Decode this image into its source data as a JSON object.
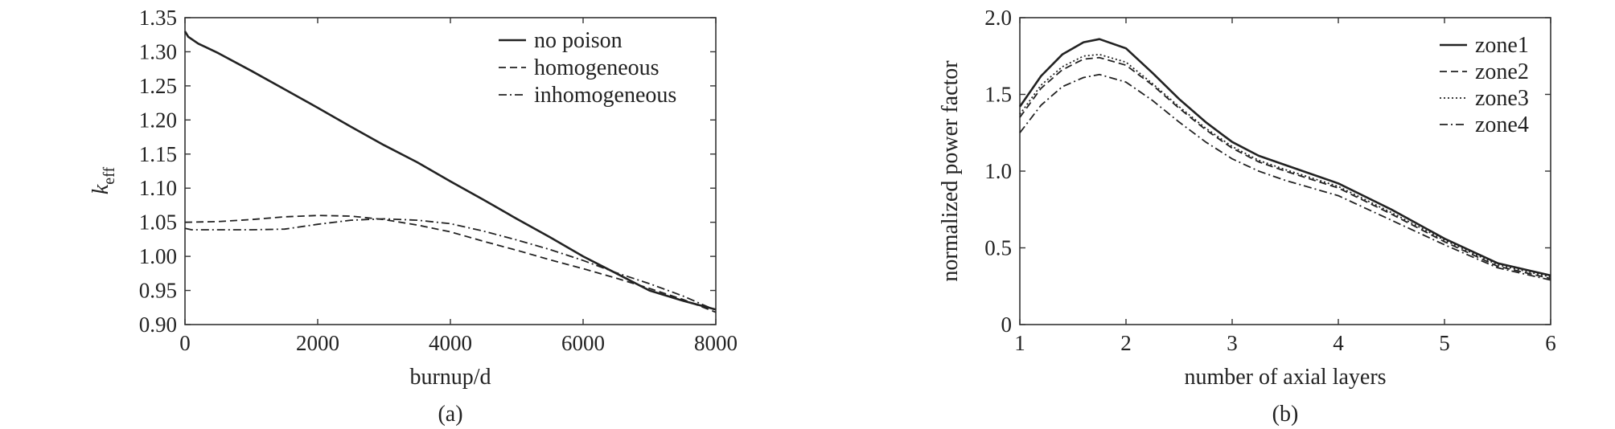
{
  "chart_data": [
    {
      "type": "line",
      "panel_label": "(a)",
      "xlabel": "burnup/d",
      "ylabel_main": "k",
      "ylabel_sub": "eff",
      "xlim": [
        0,
        8000
      ],
      "ylim": [
        0.9,
        1.35
      ],
      "xticks": [
        0,
        2000,
        4000,
        6000,
        8000
      ],
      "xtick_labels": [
        "0",
        "2000",
        "4000",
        "6000",
        "8000"
      ],
      "yticks": [
        0.9,
        0.95,
        1.0,
        1.05,
        1.1,
        1.15,
        1.2,
        1.25,
        1.3,
        1.35
      ],
      "ytick_labels": [
        "0.90",
        "0.95",
        "1.00",
        "1.05",
        "1.10",
        "1.15",
        "1.20",
        "1.25",
        "1.30",
        "1.35"
      ],
      "grid": false,
      "legend_position": "top-right",
      "series": [
        {
          "name": "no poison",
          "style": "solid",
          "x": [
            0,
            50,
            200,
            500,
            1000,
            1500,
            2000,
            2500,
            3000,
            3500,
            4000,
            4500,
            5000,
            5500,
            6000,
            6500,
            7000,
            7500,
            8000
          ],
          "y": [
            1.33,
            1.322,
            1.312,
            1.298,
            1.272,
            1.245,
            1.218,
            1.19,
            1.163,
            1.138,
            1.11,
            1.083,
            1.055,
            1.028,
            1.0,
            0.975,
            0.95,
            0.935,
            0.922
          ]
        },
        {
          "name": "homogeneous",
          "style": "dashed",
          "x": [
            0,
            500,
            1000,
            1500,
            2000,
            2500,
            3000,
            3500,
            4000,
            4500,
            5000,
            5500,
            6000,
            6500,
            7000,
            7500,
            8000
          ],
          "y": [
            1.05,
            1.051,
            1.054,
            1.058,
            1.06,
            1.059,
            1.054,
            1.046,
            1.036,
            1.022,
            1.009,
            0.995,
            0.982,
            0.968,
            0.953,
            0.937,
            0.918
          ]
        },
        {
          "name": "inhomogeneous",
          "style": "dashdot",
          "x": [
            0,
            100,
            500,
            1000,
            1500,
            2000,
            2500,
            3000,
            3500,
            4000,
            4500,
            5000,
            5500,
            6000,
            6500,
            7000,
            7500,
            8000
          ],
          "y": [
            1.041,
            1.039,
            1.039,
            1.039,
            1.04,
            1.047,
            1.053,
            1.055,
            1.053,
            1.048,
            1.037,
            1.024,
            1.01,
            0.994,
            0.976,
            0.96,
            0.942,
            0.921
          ]
        }
      ]
    },
    {
      "type": "line",
      "panel_label": "(b)",
      "xlabel": "number of axial layers",
      "ylabel": "normalized power factor",
      "xlim": [
        1,
        6
      ],
      "ylim": [
        0,
        2.0
      ],
      "xticks": [
        1,
        2,
        3,
        4,
        5,
        6
      ],
      "xtick_labels": [
        "1",
        "2",
        "3",
        "4",
        "5",
        "6"
      ],
      "yticks": [
        0,
        0.5,
        1.0,
        1.5,
        2.0
      ],
      "ytick_labels": [
        "0",
        "0.5",
        "1.0",
        "1.5",
        "2.0"
      ],
      "grid": false,
      "legend_position": "top-right",
      "series": [
        {
          "name": "zone1",
          "style": "solid",
          "x": [
            1,
            1.2,
            1.4,
            1.6,
            1.75,
            2.0,
            2.25,
            2.5,
            2.75,
            3.0,
            3.25,
            3.5,
            4.0,
            4.5,
            5.0,
            5.5,
            6.0
          ],
          "y": [
            1.42,
            1.62,
            1.76,
            1.84,
            1.86,
            1.8,
            1.64,
            1.47,
            1.32,
            1.19,
            1.1,
            1.04,
            0.92,
            0.75,
            0.56,
            0.4,
            0.32
          ]
        },
        {
          "name": "zone2",
          "style": "dashed",
          "x": [
            1,
            1.2,
            1.4,
            1.6,
            1.75,
            2.0,
            2.25,
            2.5,
            2.75,
            3.0,
            3.25,
            3.5,
            4.0,
            4.5,
            5.0,
            5.5,
            6.0
          ],
          "y": [
            1.35,
            1.54,
            1.66,
            1.73,
            1.74,
            1.69,
            1.56,
            1.41,
            1.27,
            1.15,
            1.06,
            1.0,
            0.89,
            0.72,
            0.54,
            0.38,
            0.3
          ]
        },
        {
          "name": "zone3",
          "style": "dotted",
          "x": [
            1,
            1.2,
            1.4,
            1.6,
            1.75,
            2.0,
            2.25,
            2.5,
            2.75,
            3.0,
            3.25,
            3.5,
            4.0,
            4.5,
            5.0,
            5.5,
            6.0
          ],
          "y": [
            1.37,
            1.56,
            1.68,
            1.75,
            1.76,
            1.71,
            1.57,
            1.42,
            1.28,
            1.16,
            1.07,
            1.01,
            0.9,
            0.73,
            0.55,
            0.39,
            0.31
          ]
        },
        {
          "name": "zone4",
          "style": "dashdot",
          "x": [
            1,
            1.2,
            1.4,
            1.6,
            1.75,
            2.0,
            2.25,
            2.5,
            2.75,
            3.0,
            3.25,
            3.5,
            4.0,
            4.5,
            5.0,
            5.5,
            6.0
          ],
          "y": [
            1.25,
            1.43,
            1.55,
            1.61,
            1.63,
            1.58,
            1.46,
            1.32,
            1.19,
            1.08,
            1.0,
            0.94,
            0.84,
            0.68,
            0.52,
            0.37,
            0.29
          ]
        }
      ]
    }
  ]
}
